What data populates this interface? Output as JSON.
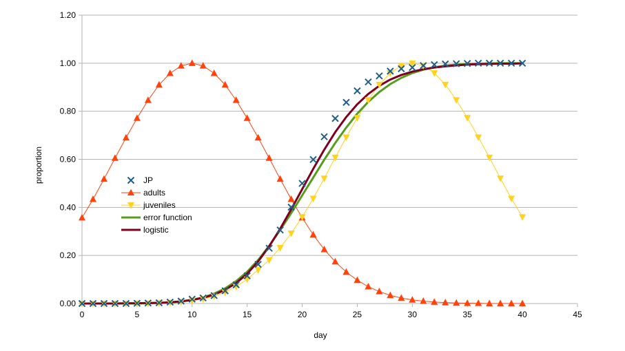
{
  "chart_data": {
    "type": "line",
    "title": "",
    "xlabel": "day",
    "ylabel": "proportion",
    "xlim": [
      0,
      45
    ],
    "ylim": [
      0,
      1.2
    ],
    "x_ticks": [
      0,
      5,
      10,
      15,
      20,
      25,
      30,
      35,
      40,
      45
    ],
    "y_ticks": [
      0.0,
      0.2,
      0.4,
      0.6,
      0.8,
      1.0,
      1.2
    ],
    "x_tick_labels": [
      "0",
      "5",
      "10",
      "15",
      "20",
      "25",
      "30",
      "35",
      "40",
      "45"
    ],
    "y_tick_labels": [
      "0.00",
      "0.20",
      "0.40",
      "0.60",
      "0.80",
      "1.00",
      "1.20"
    ],
    "grid": "horizontal",
    "legend_position": "left-middle",
    "x": [
      0,
      1,
      2,
      3,
      4,
      5,
      6,
      7,
      8,
      9,
      10,
      11,
      12,
      13,
      14,
      15,
      16,
      17,
      18,
      19,
      20,
      21,
      22,
      23,
      24,
      25,
      26,
      27,
      28,
      29,
      30,
      31,
      32,
      33,
      34,
      35,
      36,
      37,
      38,
      39,
      40
    ],
    "series": [
      {
        "name": "JP",
        "color": "#1f5f8b",
        "marker": "x",
        "line": false,
        "values": [
          0.0,
          0.0,
          0.0,
          0.0,
          0.0,
          0.001,
          0.002,
          0.003,
          0.006,
          0.01,
          0.018,
          0.023,
          0.033,
          0.053,
          0.078,
          0.115,
          0.163,
          0.23,
          0.306,
          0.401,
          0.5,
          0.599,
          0.694,
          0.77,
          0.837,
          0.885,
          0.922,
          0.947,
          0.967,
          0.977,
          0.982,
          0.99,
          0.994,
          0.997,
          0.998,
          0.999,
          1.0,
          1.0,
          1.0,
          1.0,
          1.0
        ]
      },
      {
        "name": "adults",
        "color": "#ff420e",
        "marker": "triangle-up",
        "line": true,
        "values": [
          0.357,
          0.434,
          0.518,
          0.605,
          0.69,
          0.771,
          0.846,
          0.91,
          0.958,
          0.989,
          1.0,
          0.989,
          0.958,
          0.91,
          0.846,
          0.771,
          0.69,
          0.605,
          0.518,
          0.434,
          0.357,
          0.286,
          0.225,
          0.174,
          0.131,
          0.097,
          0.07,
          0.05,
          0.034,
          0.023,
          0.015,
          0.01,
          0.006,
          0.004,
          0.002,
          0.001,
          0.001,
          0.0,
          0.0,
          0.0,
          0.0
        ]
      },
      {
        "name": "juveniles",
        "color": "#ffd320",
        "marker": "triangle-down",
        "line": true,
        "values": [
          0.0,
          0.0,
          0.0,
          0.0,
          0.0,
          0.001,
          0.001,
          0.002,
          0.004,
          0.007,
          0.012,
          0.019,
          0.03,
          0.047,
          0.07,
          0.101,
          0.14,
          0.181,
          0.232,
          0.292,
          0.36,
          0.437,
          0.521,
          0.608,
          0.692,
          0.773,
          0.847,
          0.911,
          0.959,
          0.99,
          1.0,
          0.99,
          0.959,
          0.911,
          0.847,
          0.773,
          0.692,
          0.608,
          0.521,
          0.437,
          0.36
        ]
      },
      {
        "name": "error function",
        "color": "#579d1c",
        "marker": "none",
        "line": true,
        "line_width": 3,
        "values": [
          0.0,
          0.0,
          0.0,
          0.0,
          0.0,
          0.0,
          0.001,
          0.002,
          0.004,
          0.008,
          0.015,
          0.025,
          0.041,
          0.063,
          0.093,
          0.132,
          0.181,
          0.24,
          0.306,
          0.376,
          0.45,
          0.524,
          0.598,
          0.668,
          0.732,
          0.79,
          0.839,
          0.88,
          0.913,
          0.939,
          0.959,
          0.973,
          0.983,
          0.99,
          0.994,
          0.997,
          0.998,
          0.999,
          1.0,
          1.0,
          1.0
        ]
      },
      {
        "name": "logistic",
        "color": "#7e0021",
        "marker": "none",
        "line": true,
        "line_width": 3,
        "values": [
          0.0,
          0.0,
          0.0,
          0.0,
          0.001,
          0.001,
          0.002,
          0.003,
          0.005,
          0.009,
          0.015,
          0.024,
          0.037,
          0.057,
          0.085,
          0.124,
          0.175,
          0.238,
          0.311,
          0.392,
          0.476,
          0.56,
          0.64,
          0.713,
          0.776,
          0.829,
          0.872,
          0.906,
          0.932,
          0.951,
          0.965,
          0.975,
          0.982,
          0.987,
          0.991,
          0.994,
          0.996,
          0.997,
          0.998,
          0.998,
          0.999
        ]
      }
    ]
  }
}
